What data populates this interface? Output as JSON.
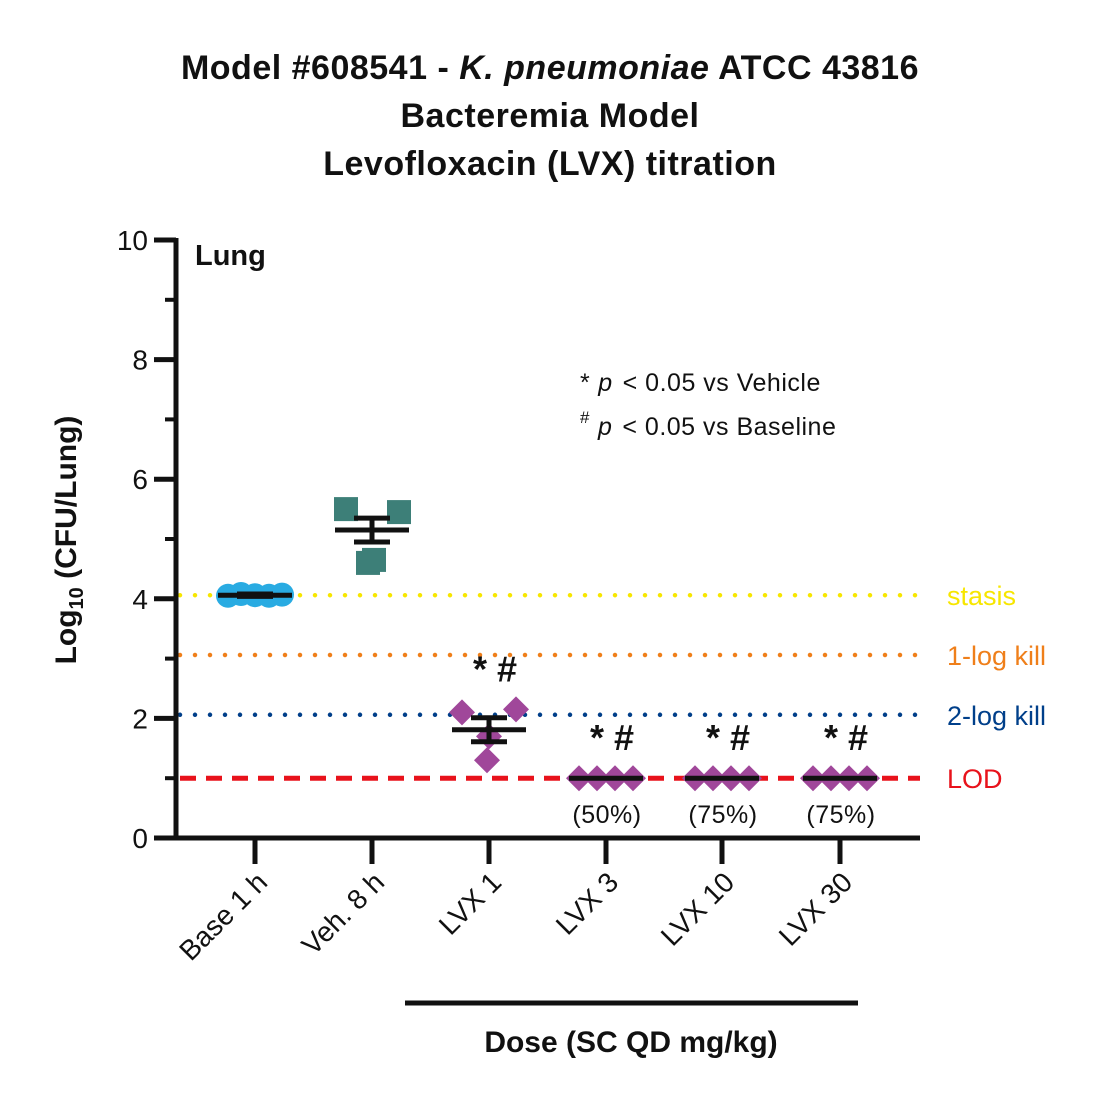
{
  "title": {
    "line1_prefix": "Model #608541 - ",
    "line1_italic": "K. pneumoniae",
    "line1_suffix": " ATCC 43816",
    "line2": "Bacteremia Model",
    "line3": "Levofloxacin (LVX) titration"
  },
  "colors": {
    "axis": "#111111",
    "baseline_marker": "#29abe2",
    "vehicle_marker": "#3d7f78",
    "lvx_marker": "#a0479a",
    "stasis": "#f7e600",
    "one_log_kill": "#ef7f1a",
    "two_log_kill": "#003f8a",
    "lod": "#e8121b"
  },
  "chart_data": {
    "type": "scatter",
    "panel_label": "Lung",
    "ylabel_main": "Log",
    "ylabel_sub": "10",
    "ylabel_rest": " (CFU/Lung)",
    "xlabel": "Dose (SC QD mg/kg)",
    "ylim": [
      0,
      10
    ],
    "yticks": [
      "0",
      "2",
      "4",
      "6",
      "8",
      "10"
    ],
    "categories": [
      "Base 1 h",
      "Veh. 8 h",
      "LVX 1",
      "LVX 3",
      "LVX 10",
      "LVX 30"
    ],
    "groups": [
      {
        "category": "Base 1 h",
        "marker": "circle",
        "points": [
          4.05,
          4.08,
          4.06,
          4.05,
          4.07
        ],
        "mean": 4.06,
        "sem": 0.02
      },
      {
        "category": "Veh. 8 h",
        "marker": "square",
        "points": [
          5.5,
          5.45,
          4.6,
          4.65
        ],
        "mean": 5.15,
        "sem": 0.2
      },
      {
        "category": "LVX 1",
        "marker": "diamond",
        "points": [
          2.1,
          2.15,
          1.3,
          1.7
        ],
        "mean": 1.81,
        "sem": 0.2
      },
      {
        "category": "LVX 3",
        "marker": "diamond",
        "points": [
          1.0,
          1.0,
          1.0,
          1.0
        ],
        "mean": 1.0,
        "sem": 0.0
      },
      {
        "category": "LVX 10",
        "marker": "diamond",
        "points": [
          1.0,
          1.0,
          1.0,
          1.0
        ],
        "mean": 1.0,
        "sem": 0.0
      },
      {
        "category": "LVX 30",
        "marker": "diamond",
        "points": [
          1.0,
          1.0,
          1.0,
          1.0
        ],
        "mean": 1.0,
        "sem": 0.0
      }
    ],
    "significance": [
      "",
      "",
      "* #",
      "* #",
      "* #",
      "* #"
    ],
    "percent_labels": [
      "",
      "",
      "",
      "(50%)",
      "(75%)",
      "(75%)"
    ],
    "reference_lines": [
      {
        "name": "stasis",
        "y": 4.06,
        "style": "dotted",
        "color": "#f7e600"
      },
      {
        "name": "1-log kill",
        "y": 3.06,
        "style": "dotted",
        "color": "#ef7f1a"
      },
      {
        "name": "2-log kill",
        "y": 2.06,
        "style": "dotted",
        "color": "#003f8a"
      },
      {
        "name": "LOD",
        "y": 1.0,
        "style": "dashed",
        "color": "#e8121b"
      }
    ],
    "legend": {
      "line1_star": "*",
      "line1_p": "p",
      "line1_text": "< 0.05 vs Vehicle",
      "line2_hash": "#",
      "line2_p": "p",
      "line2_text": "< 0.05 vs Baseline"
    }
  }
}
